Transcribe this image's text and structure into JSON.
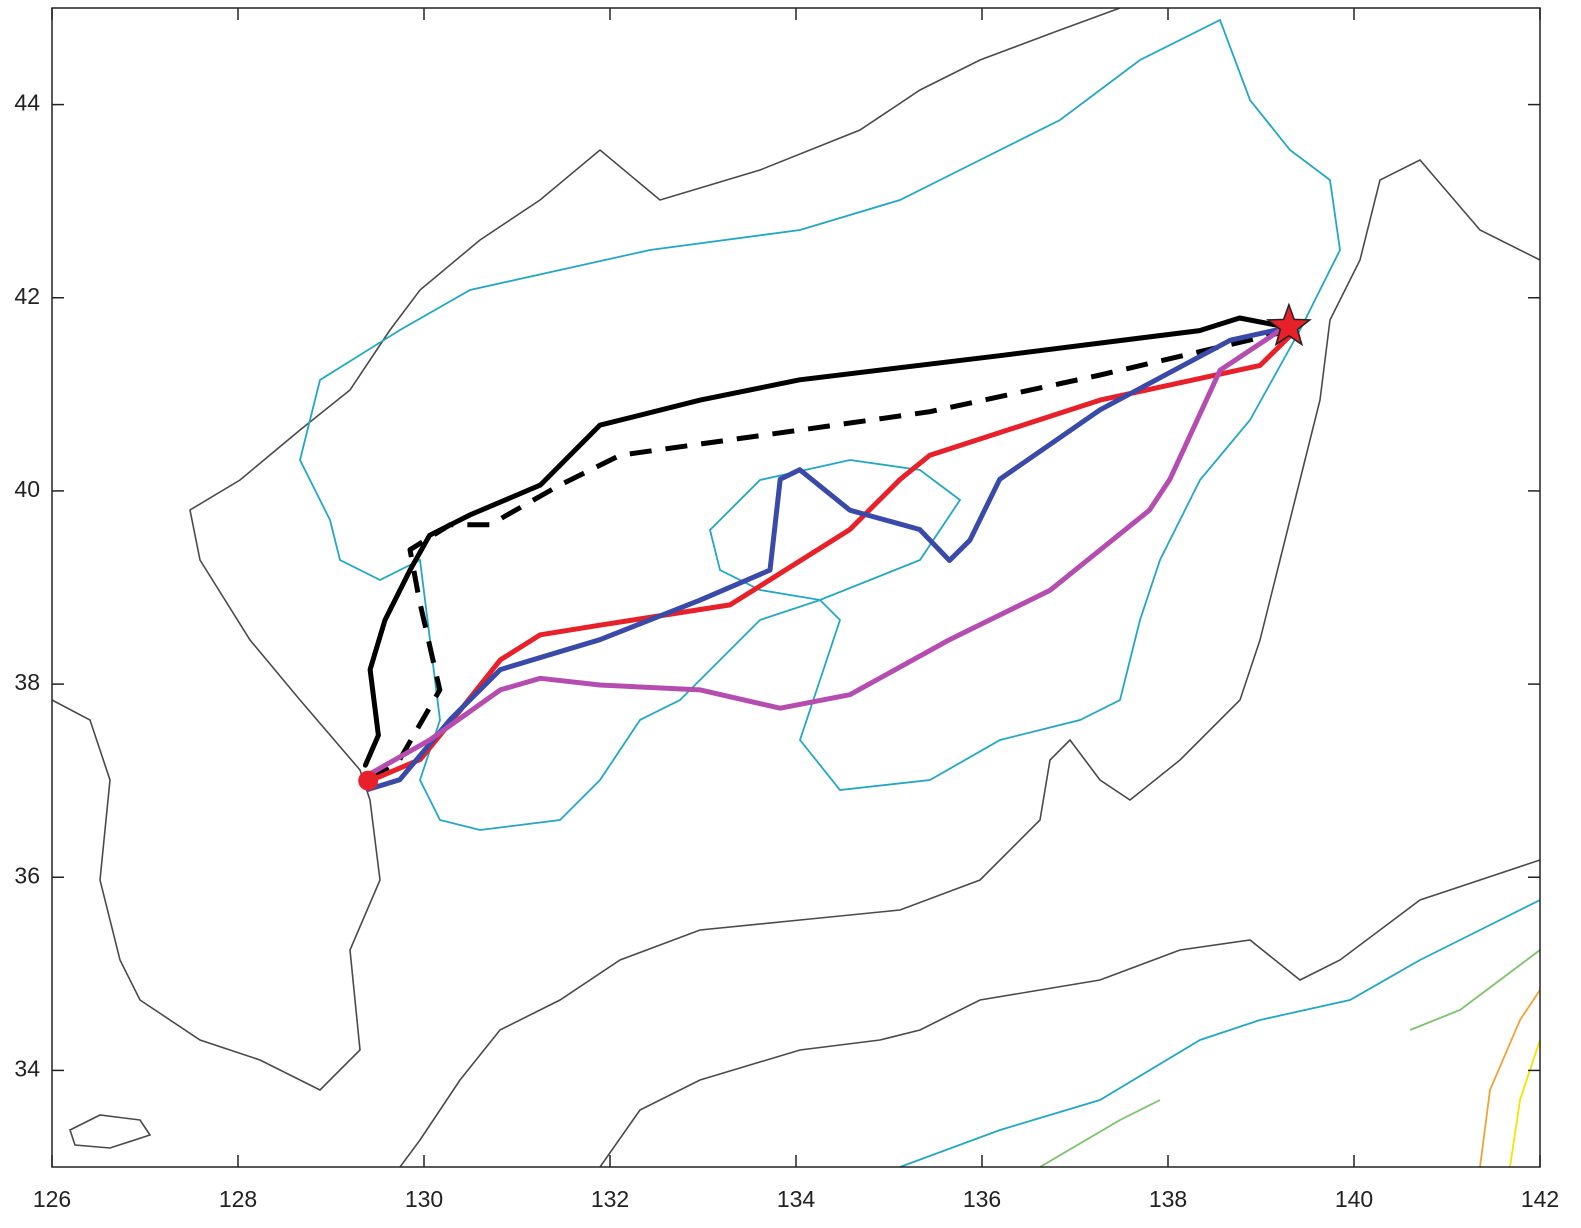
{
  "chart_data": {
    "type": "line",
    "xlim": [
      126,
      142
    ],
    "ylim": [
      33,
      45
    ],
    "xticks": [
      126,
      128,
      130,
      132,
      134,
      136,
      138,
      140,
      142
    ],
    "yticks": [
      34,
      36,
      38,
      40,
      42,
      44
    ],
    "series": [
      {
        "color": "#000000",
        "dashed": false,
        "x": [
          129.37,
          129.51,
          129.42,
          129.58,
          129.85,
          130.06,
          130.49,
          131.25,
          131.89,
          132.97,
          134.04,
          136.19,
          138.34,
          138.77,
          139.37
        ],
        "y": [
          37.16,
          37.47,
          38.15,
          38.66,
          39.18,
          39.54,
          39.75,
          40.06,
          40.68,
          40.94,
          41.15,
          41.4,
          41.66,
          41.79,
          41.68
        ]
      },
      {
        "color": "#000000",
        "dashed": true,
        "x": [
          129.42,
          129.74,
          130.17,
          129.95,
          129.85,
          130.28,
          130.71,
          131.46,
          132.11,
          134.04,
          135.44,
          137.27,
          139.31
        ],
        "y": [
          37.01,
          37.22,
          37.94,
          38.87,
          39.39,
          39.65,
          39.65,
          40.06,
          40.37,
          40.63,
          40.82,
          41.2,
          41.66
        ]
      },
      {
        "color": "#e8202a",
        "dashed": false,
        "x": [
          129.4,
          129.96,
          130.39,
          130.82,
          131.25,
          131.89,
          133.29,
          133.72,
          134.58,
          135.12,
          135.44,
          137.27,
          138.99,
          139.37
        ],
        "y": [
          36.99,
          37.22,
          37.73,
          38.25,
          38.51,
          38.61,
          38.82,
          39.08,
          39.6,
          40.12,
          40.37,
          40.94,
          41.3,
          41.66
        ]
      },
      {
        "color": "#3a4aa8",
        "dashed": false,
        "x": [
          129.4,
          129.74,
          130.28,
          130.82,
          131.89,
          132.97,
          133.72,
          133.83,
          134.04,
          134.58,
          135.33,
          135.65,
          135.87,
          136.19,
          137.27,
          138.67,
          139.37
        ],
        "y": [
          36.91,
          37.01,
          37.63,
          38.15,
          38.46,
          38.87,
          39.18,
          40.12,
          40.22,
          39.8,
          39.6,
          39.28,
          39.49,
          40.12,
          40.84,
          41.56,
          41.71
        ]
      },
      {
        "color": "#b54db0",
        "dashed": false,
        "x": [
          129.4,
          130.06,
          130.82,
          131.25,
          131.89,
          132.97,
          133.83,
          134.58,
          135.65,
          136.73,
          137.8,
          138.02,
          138.56,
          139.2
        ],
        "y": [
          37.06,
          37.42,
          37.94,
          38.06,
          37.99,
          37.94,
          37.75,
          37.89,
          38.46,
          38.97,
          39.8,
          40.12,
          41.25,
          41.66
        ]
      }
    ],
    "markers": [
      {
        "shape": "circle",
        "color": "#e8202a",
        "x": 129.4,
        "y": 37.0
      },
      {
        "shape": "star",
        "color": "#e8202a",
        "x": 139.3,
        "y": 41.7
      }
    ]
  }
}
